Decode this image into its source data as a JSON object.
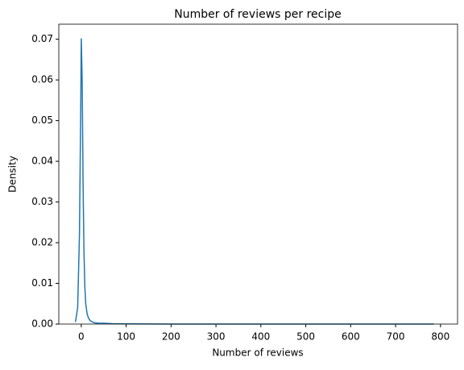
{
  "chart_data": {
    "type": "line",
    "title": "Number of reviews per recipe",
    "x_label": "Number of reviews",
    "y_label": "Density",
    "x": [
      -13,
      -8,
      -4,
      -1,
      0,
      2,
      4,
      6,
      8,
      10,
      13,
      16,
      20,
      25,
      30,
      40,
      50,
      70,
      100,
      150,
      200,
      300,
      400,
      500,
      600,
      700,
      785
    ],
    "series": [
      {
        "color": "#1f77b4",
        "values": [
          0.0005,
          0.004,
          0.022,
          0.055,
          0.0702,
          0.06,
          0.035,
          0.018,
          0.009,
          0.005,
          0.0025,
          0.0015,
          0.0008,
          0.0005,
          0.0003,
          0.0002,
          0.0002,
          0.0001,
          5e-05,
          2e-05,
          1e-05,
          1e-05,
          0,
          0,
          0,
          0,
          0
        ]
      }
    ],
    "xlim": [
      -50,
      838
    ],
    "ylim": [
      0,
      0.0737
    ],
    "xticks": [
      0,
      100,
      200,
      300,
      400,
      500,
      600,
      700,
      800
    ],
    "yticks": [
      {
        "value": 0,
        "label": "0.00"
      },
      0.01,
      0.02,
      0.03,
      0.04,
      0.05,
      0.06,
      0.07
    ]
  }
}
